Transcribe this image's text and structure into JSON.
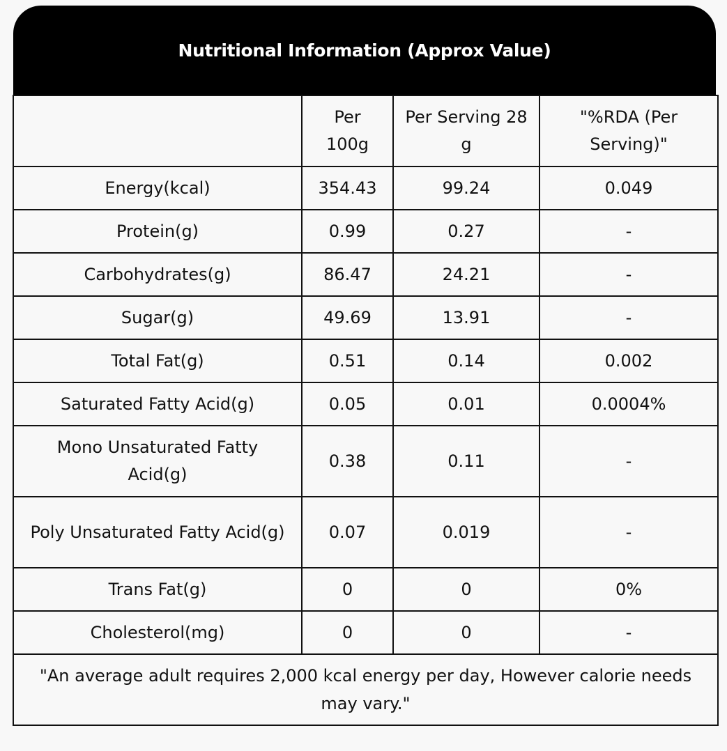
{
  "title": "Nutritional Information (Approx Value)",
  "columns": [
    "",
    "Per 100g",
    "Per Serving 28 g",
    "\"%RDA (Per Serving)\""
  ],
  "rows": [
    {
      "nutrient": "Energy(kcal)",
      "per_100g": "354.43",
      "per_serving": "99.24",
      "rda": "0.049"
    },
    {
      "nutrient": "Protein(g)",
      "per_100g": "0.99",
      "per_serving": "0.27",
      "rda": "-"
    },
    {
      "nutrient": "Carbohydrates(g)",
      "per_100g": "86.47",
      "per_serving": "24.21",
      "rda": "-"
    },
    {
      "nutrient": "Sugar(g)",
      "per_100g": "49.69",
      "per_serving": "13.91",
      "rda": "-"
    },
    {
      "nutrient": "Total Fat(g)",
      "per_100g": "0.51",
      "per_serving": "0.14",
      "rda": "0.002"
    },
    {
      "nutrient": "Saturated Fatty Acid(g)",
      "per_100g": "0.05",
      "per_serving": "0.01",
      "rda": "0.0004%"
    },
    {
      "nutrient": "Mono Unsaturated Fatty Acid(g)",
      "per_100g": "0.38",
      "per_serving": "0.11",
      "rda": "-"
    },
    {
      "nutrient": "Poly Unsaturated Fatty Acid(g)",
      "per_100g": "0.07",
      "per_serving": "0.019",
      "rda": "-"
    },
    {
      "nutrient": "Trans Fat(g)",
      "per_100g": "0",
      "per_serving": "0",
      "rda": "0%"
    },
    {
      "nutrient": "Cholesterol(mg)",
      "per_100g": "0",
      "per_serving": "0",
      "rda": "-"
    }
  ],
  "footnote": "\"An average adult requires 2,000 kcal energy per day, However calorie needs may vary.\"",
  "colors": {
    "header_bg": "#000000",
    "header_text": "#ffffff",
    "border": "#111111",
    "page_bg": "#f8f8f8"
  }
}
